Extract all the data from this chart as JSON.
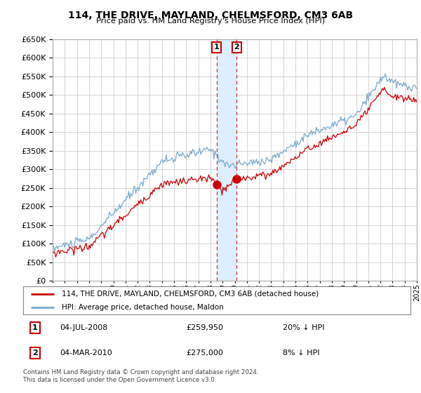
{
  "title": "114, THE DRIVE, MAYLAND, CHELMSFORD, CM3 6AB",
  "subtitle": "Price paid vs. HM Land Registry's House Price Index (HPI)",
  "legend_line1": "114, THE DRIVE, MAYLAND, CHELMSFORD, CM3 6AB (detached house)",
  "legend_line2": "HPI: Average price, detached house, Maldon",
  "transaction1_date": "04-JUL-2008",
  "transaction1_price": "£259,950",
  "transaction1_hpi": "20% ↓ HPI",
  "transaction2_date": "04-MAR-2010",
  "transaction2_price": "£275,000",
  "transaction2_hpi": "8% ↓ HPI",
  "footnote": "Contains HM Land Registry data © Crown copyright and database right 2024.\nThis data is licensed under the Open Government Licence v3.0.",
  "red_color": "#cc0000",
  "blue_color": "#7aaacc",
  "shade_color": "#ddeeff",
  "background_color": "#ffffff",
  "grid_color": "#cccccc",
  "ylim": [
    0,
    650000
  ],
  "ytick_step": 50000,
  "x_start_year": 1995,
  "x_end_year": 2025,
  "transaction1_year": 2008.5,
  "transaction2_year": 2010.17
}
